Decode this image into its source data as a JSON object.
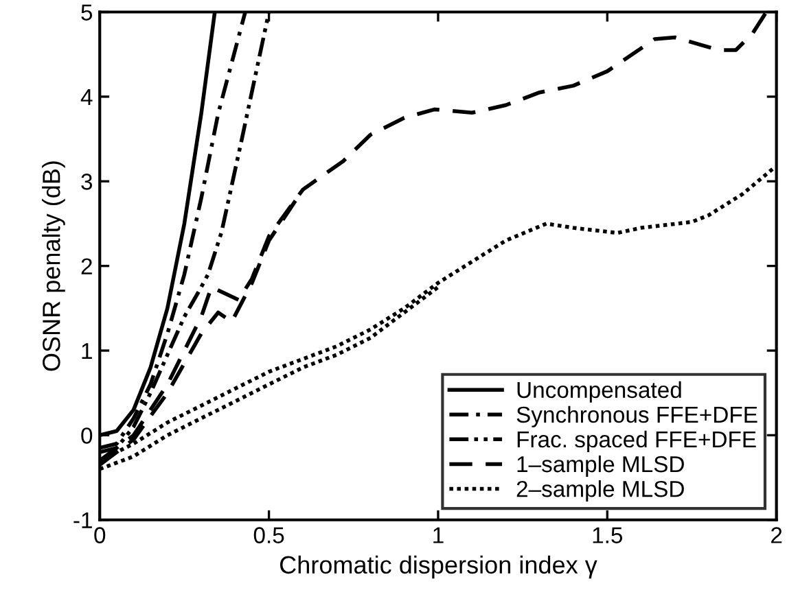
{
  "chart_data": {
    "type": "line",
    "xlabel": "Chromatic dispersion index γ",
    "ylabel": "OSNR penalty (dB)",
    "xlim": [
      0,
      2
    ],
    "ylim": [
      -1,
      5
    ],
    "xticks": [
      0,
      0.5,
      1,
      1.5,
      2
    ],
    "yticks": [
      -1,
      0,
      1,
      2,
      3,
      4,
      5
    ],
    "legend": "bottom right",
    "grid": false,
    "series": [
      {
        "name": "Uncompensated",
        "color": "#000000",
        "line_style": "solid",
        "x": [
          0,
          0.05,
          0.1,
          0.15,
          0.2,
          0.25,
          0.3,
          0.34
        ],
        "values": [
          0,
          0.05,
          0.3,
          0.8,
          1.5,
          2.5,
          3.8,
          5
        ]
      },
      {
        "name": "Synchronous FFE+DFE",
        "color": "#000000",
        "line_style": "dashdot",
        "x": [
          0,
          0.05,
          0.1,
          0.15,
          0.2,
          0.25,
          0.3,
          0.35,
          0.43
        ],
        "values": [
          -0.15,
          -0.1,
          0.2,
          0.6,
          1.2,
          1.9,
          2.8,
          3.8,
          5
        ]
      },
      {
        "name": "Frac. spaced FFE+DFE",
        "color": "#000000",
        "line_style": "dashdotdot",
        "x": [
          0,
          0.05,
          0.1,
          0.15,
          0.2,
          0.25,
          0.3,
          0.32,
          0.36,
          0.42,
          0.5
        ],
        "values": [
          -0.2,
          -0.15,
          0.1,
          0.5,
          0.95,
          1.4,
          1.75,
          1.9,
          2.4,
          3.5,
          5
        ]
      },
      {
        "name": "1–sample MLSD",
        "color": "#000000",
        "line_style": "dashed",
        "x": [
          0,
          0.1,
          0.2,
          0.3,
          0.33,
          0.41,
          0.45,
          0.5,
          0.6,
          0.72,
          0.8,
          0.9,
          0.99,
          1.1,
          1.2,
          1.3,
          1.4,
          1.5,
          1.64,
          1.7,
          1.83,
          1.88,
          1.93,
          1.97
        ],
        "values": [
          -0.3,
          0.0,
          0.6,
          1.4,
          1.75,
          1.6,
          1.85,
          2.35,
          2.9,
          3.24,
          3.55,
          3.75,
          3.85,
          3.81,
          3.9,
          4.05,
          4.13,
          4.3,
          4.68,
          4.7,
          4.55,
          4.55,
          4.75,
          5
        ]
      },
      {
        "color": "#000000",
        "line_style": "dashed",
        "x": [
          0,
          0.1,
          0.2,
          0.3,
          0.35,
          0.39,
          0.45,
          0.5,
          0.55,
          0.6
        ],
        "values": [
          -0.35,
          -0.05,
          0.5,
          1.2,
          1.45,
          1.34,
          1.8,
          2.3,
          2.6,
          2.9
        ]
      },
      {
        "name": "2–sample MLSD",
        "color": "#000000",
        "line_style": "dotted",
        "x": [
          0,
          0.1,
          0.2,
          0.3,
          0.4,
          0.5,
          0.6,
          0.7,
          0.8,
          0.9,
          1.0,
          1.1,
          1.2,
          1.32,
          1.4,
          1.53,
          1.6,
          1.75,
          1.8,
          1.9,
          1.99
        ],
        "values": [
          -0.3,
          -0.1,
          0.15,
          0.35,
          0.55,
          0.75,
          0.9,
          1.05,
          1.25,
          1.5,
          1.8,
          2.05,
          2.3,
          2.5,
          2.45,
          2.39,
          2.45,
          2.52,
          2.6,
          2.85,
          3.15
        ]
      },
      {
        "color": "#000000",
        "line_style": "dotted",
        "x": [
          0,
          0.1,
          0.2,
          0.3,
          0.4,
          0.5,
          0.6,
          0.7,
          0.8,
          0.9,
          1.0
        ],
        "values": [
          -0.4,
          -0.25,
          0.0,
          0.2,
          0.4,
          0.6,
          0.8,
          0.95,
          1.15,
          1.45,
          1.75
        ]
      }
    ]
  }
}
